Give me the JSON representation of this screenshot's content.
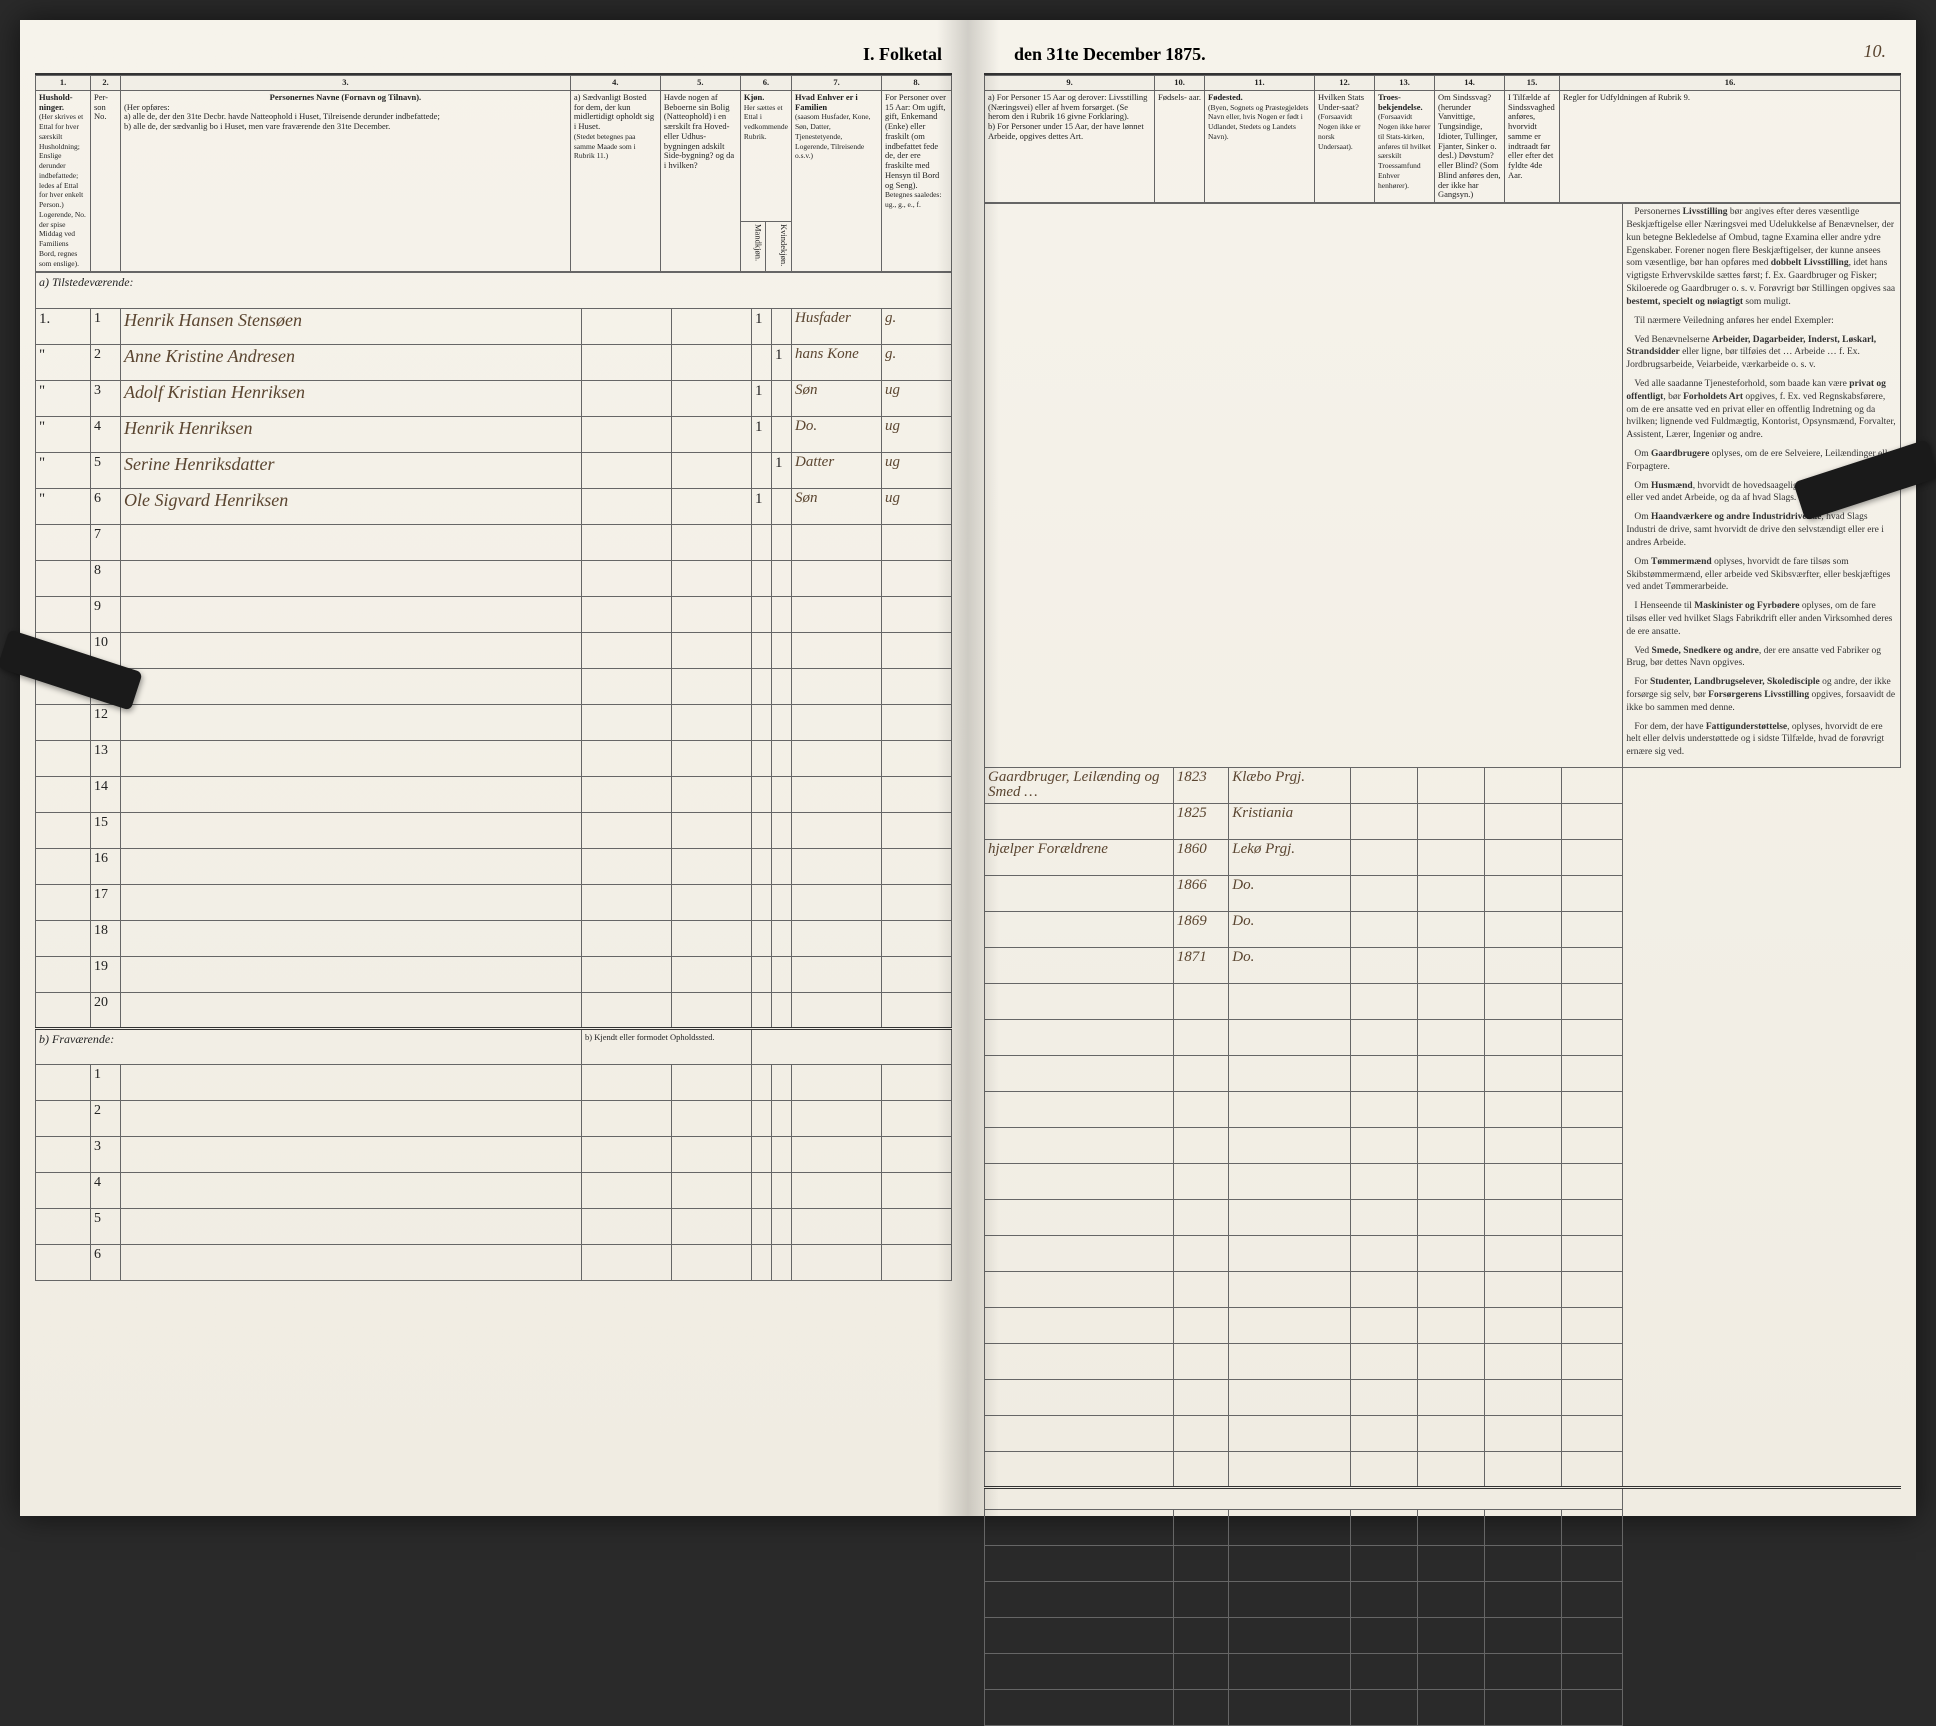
{
  "title_left": "I. Folketal",
  "title_right": "den 31te December 1875.",
  "page_number_right": "10.",
  "columns": {
    "c1": "1.",
    "c2": "2.",
    "c3": "3.",
    "c4": "4.",
    "c5": "5.",
    "c6": "6.",
    "c7": "7.",
    "c8": "8.",
    "c9": "9.",
    "c10": "10.",
    "c11": "11.",
    "c12": "12.",
    "c13": "13.",
    "c14": "14.",
    "c15": "15.",
    "c16": "16."
  },
  "headers_left": {
    "h1": "Hushold-\nninger.",
    "h1_sub": "(Her skrives et Ettal for hver særskilt Husholdning; Enslige derunder indbefattede; ledes af Ettal for hver enkelt Person.)",
    "h2": "Per-\nson No.",
    "h3": "Personernes Navne (Fornavn og Tilnavn).",
    "h3_sub_intro": "(Her opføres:",
    "h3_sub_a": "a) alle de, der den 31te Decbr. havde Natteophold i Huset, Tilreisende derunder indbefattede;",
    "h3_sub_b": "b) alle de, der sædvanlig bo i Huset, men vare fraværende den 31te December.",
    "h3_note": "Logerende, No. der spise Middag ved Familiens Bord, regnes som enslige).",
    "h4": "a) Sædvanligt Bosted for dem, der kun midlertidigt opholdt sig i Huset.",
    "h4b": "(Stedet betegnes paa samme Maade som i Rubrik 11.)",
    "h5": "Havde nogen af Beboerne sin Bolig (Natteophold) i en særskilt fra Hoved- eller Udhus-bygningen adskilt Side-bygning? og da i hvilken?",
    "h6a": "Kjøn.",
    "h6b": "Her sættes et Ettal i vedkommende Rubrik.",
    "h6m": "Mandkjøn.",
    "h6f": "Kvindekjøn.",
    "h7": "Hvad Enhver er i Familien",
    "h7_sub": "(saasom Husfader, Kone, Søn, Datter, Tjenestetyende, Logerende, Tilreisende o.s.v.)",
    "h8": "For Personer over 15 Aar: Om ugift, gift, Enkemand (Enke) eller fraskilt (om indbefattet fede de, der ere fraskilte med Hensyn til Bord og Seng).",
    "h8_sub": "Betegnes saaledes: ug., g., e., f."
  },
  "headers_right": {
    "h9a": "a) For Personer 15 Aar og derover: Livsstilling (Næringsvei) eller af hvem forsørget. (Se herom den i Rubrik 16 givne Forklaring).",
    "h9b": "b) For Personer under 15 Aar, der have lønnet Arbeide, opgives dettes Art.",
    "h10": "Fødsels-\naar.",
    "h11": "Fødested.",
    "h11_sub": "(Byen, Sognets og Præstegjeldets Navn eller, hvis Nogen er født i Udlandet, Stedets og Landets Navn).",
    "h12": "Hvilken Stats Under-saat?",
    "h12_sub": "(Forsaavidt Nogen ikke er norsk Undersaat).",
    "h13": "Troes-bekjendelse.",
    "h13_sub": "(Forsaavidt Nogen ikke hører til Stats-kirken, anføres til hvilket særskilt Troessamfund Enhver henhører).",
    "h14": "Om Sindssvag? (herunder Vanvittige, Tungsindige, Idioter, Tullinger, Fjanter, Sinker o. desl.) Døvstum? eller Blind? (Som Blind anføres den, der ikke har Gangsyn.)",
    "h15": "I Tilfælde af Sindssvaghed anføres, hvorvidt samme er indtraadt før eller efter det fyldte 4de Aar.",
    "h16": "Regler for Udfyldningen af Rubrik 9."
  },
  "section_a": "a) Tilstedeværende:",
  "section_b": "b) Fraværende:",
  "section_b_col4": "b) Kjendt eller formodet Opholdssted.",
  "rows": [
    {
      "hh": "1.",
      "no": "1",
      "name": "Henrik Hansen Stensøen",
      "sex_m": "1",
      "sex_f": "",
      "role": "Husfader",
      "status": "g.",
      "occ": "Gaardbruger, Leilænding og Smed …",
      "year": "1823",
      "place": "Klæbo Prgj."
    },
    {
      "hh": "\"",
      "no": "2",
      "name": "Anne Kristine Andresen",
      "sex_m": "",
      "sex_f": "1",
      "role": "hans Kone",
      "status": "g.",
      "occ": "",
      "year": "1825",
      "place": "Kristiania"
    },
    {
      "hh": "\"",
      "no": "3",
      "name": "Adolf Kristian Henriksen",
      "sex_m": "1",
      "sex_f": "",
      "role": "Søn",
      "status": "ug",
      "occ": "hjælper Forældrene",
      "year": "1860",
      "place": "Lekø Prgj."
    },
    {
      "hh": "\"",
      "no": "4",
      "name": "Henrik Henriksen",
      "sex_m": "1",
      "sex_f": "",
      "role": "Do.",
      "status": "ug",
      "occ": "",
      "year": "1866",
      "place": "Do."
    },
    {
      "hh": "\"",
      "no": "5",
      "name": "Serine Henriksdatter",
      "sex_m": "",
      "sex_f": "1",
      "role": "Datter",
      "status": "ug",
      "occ": "",
      "year": "1869",
      "place": "Do."
    },
    {
      "hh": "\"",
      "no": "6",
      "name": "Ole Sigvard Henriksen",
      "sex_m": "1",
      "sex_f": "",
      "role": "Søn",
      "status": "ug",
      "occ": "",
      "year": "1871",
      "place": "Do."
    }
  ],
  "blank_rows_a": [
    "7",
    "8",
    "9",
    "10",
    "11",
    "12",
    "13",
    "14",
    "15",
    "16",
    "17",
    "18",
    "19",
    "20"
  ],
  "blank_rows_b": [
    "1",
    "2",
    "3",
    "4",
    "5",
    "6"
  ],
  "rules_text": [
    "Personernes <b>Livsstilling</b> bør angives efter deres væsentlige Beskjæftigelse eller Næringsvei med Udelukkelse af Benævnelser, der kun betegne Bekledelse af Ombud, tagne Examina eller andre ydre Egenskaber. Forener nogen flere Beskjæftigelser, der kunne ansees som væsentlige, bør han opføres med <b>dobbelt Livsstilling</b>, idet hans vigtigste Erhvervskilde sættes først; f. Ex. Gaardbruger og Fisker; Skiloerede og Gaardbruger o. s. v. Forøvrigt bør Stillingen opgives saa <b>bestemt, specielt og nøiagtigt</b> som muligt.",
    "Til nærmere Veiledning anføres her endel Exempler:",
    "Ved Benævnelserne <b>Arbeider, Dagarbeider, Inderst, Løskarl, Strandsidder</b> eller ligne, bør tilføies det … Arbeide … f. Ex. Jordbrugsarbeide, Veiarbeide, værk­arbeide o. s. v.",
    "Ved alle saadanne Tjenesteforhold, som baade kan være <b>privat og offentligt</b>, bør <b>Forholdets Art</b> opgives, f. Ex. ved Regnskabsførere, om de ere ansatte ved en privat eller en offentlig Indretning og da hvilken; lignende ved Fuldmægtig, Kontorist, Opsynsmænd, Forvalter, Assistent, Lærer, Ingeniør og andre.",
    "Om <b>Gaardbrugere</b> oplyses, om de ere Selveiere, Leilændinger eller Forpagtere.",
    "Om <b>Husmænd</b>, hvorvidt de hovedsaagelig ernære sig ved Jordbrug eller ved andet Arbeide, og da af hvad Slags.",
    "Om <b>Haandværkere og andre Industridrivende</b>, hvad Slags Industri de drive, samt hvorvidt de drive den selvstændigt eller ere i andres Arbeide.",
    "Om <b>Tømmermænd</b> oplyses, hvorvidt de fare tilsøs som Skibstømmermænd, eller arbeide ved Skibs­værfter, eller beskjæftiges ved andet Tømmerarbeide.",
    "I Henseende til <b>Maskinister og Fyrbødere</b> oplyses, om de fare tilsøs eller ved hvilket Slags Fabrikdrift eller anden Virksomhed deres de ere ansatte.",
    "Ved <b>Smede, Snedkere og andre</b>, der ere ansatte ved Fabriker og Brug, bør dettes Navn opgives.",
    "For <b>Studenter, Landbrugselever, Skoledisciple</b> og andre, der ikke forsørge sig selv, bør <b>Forsørgerens Livsstilling</b> opgives, forsaavidt de ikke bo sammen med denne.",
    "For dem, der have <b>Fattigunderstøttelse</b>, oplyses, hvorvidt de ere helt eller delvis understøttede og i sidste Tilfælde, hvad de forøvrigt ernære sig ved."
  ],
  "colors": {
    "paper": "#f4f0e8",
    "ink": "#222222",
    "handwriting": "#5a4530",
    "rule": "#666666"
  }
}
